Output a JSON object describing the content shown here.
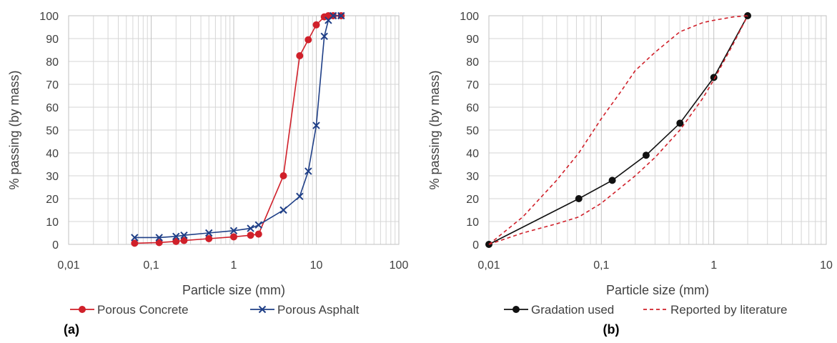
{
  "chart_data": [
    {
      "type": "line",
      "panel_label": "(a)",
      "xlabel": "Particle size (mm)",
      "ylabel": "% passing (by mass)",
      "x_scale": "log",
      "xlim": [
        0.01,
        100
      ],
      "ylim": [
        0,
        100
      ],
      "x_tick_labels": [
        "0,01",
        "0,1",
        "1",
        "10",
        "100"
      ],
      "x_tick_values": [
        0.01,
        0.1,
        1,
        10,
        100
      ],
      "y_ticks": [
        0,
        10,
        20,
        30,
        40,
        50,
        60,
        70,
        80,
        90,
        100
      ],
      "grid": true,
      "legend_position": "bottom",
      "series": [
        {
          "name": "Porous Concrete",
          "color": "#d0202a",
          "marker": "circle",
          "dash": "solid",
          "points": [
            [
              0.063,
              0.5
            ],
            [
              0.125,
              0.8
            ],
            [
              0.2,
              1.3
            ],
            [
              0.25,
              1.7
            ],
            [
              0.5,
              2.5
            ],
            [
              1.0,
              3.3
            ],
            [
              1.6,
              4.0
            ],
            [
              2.0,
              4.5
            ],
            [
              4.0,
              30.0
            ],
            [
              6.3,
              82.5
            ],
            [
              8.0,
              89.5
            ],
            [
              10.0,
              96.0
            ],
            [
              12.5,
              99.5
            ],
            [
              14.0,
              100.0
            ],
            [
              16.0,
              100.0
            ],
            [
              20.0,
              100.0
            ]
          ]
        },
        {
          "name": "Porous Asphalt",
          "color": "#1f3f87",
          "marker": "x",
          "dash": "solid",
          "points": [
            [
              0.063,
              3.0
            ],
            [
              0.125,
              3.0
            ],
            [
              0.2,
              3.5
            ],
            [
              0.25,
              4.0
            ],
            [
              0.5,
              5.0
            ],
            [
              1.0,
              6.0
            ],
            [
              1.6,
              7.0
            ],
            [
              2.0,
              8.5
            ],
            [
              4.0,
              15.0
            ],
            [
              6.3,
              21.0
            ],
            [
              8.0,
              32.0
            ],
            [
              10.0,
              52.0
            ],
            [
              12.5,
              91.0
            ],
            [
              14.0,
              98.0
            ],
            [
              16.0,
              100.0
            ],
            [
              20.0,
              100.0
            ]
          ]
        }
      ]
    },
    {
      "type": "line",
      "panel_label": "(b)",
      "xlabel": "Particle size (mm)",
      "ylabel": "% passing (by mass)",
      "x_scale": "log",
      "xlim": [
        0.01,
        10
      ],
      "ylim": [
        0,
        100
      ],
      "x_tick_labels": [
        "0,01",
        "0,1",
        "1",
        "10"
      ],
      "x_tick_values": [
        0.01,
        0.1,
        1,
        10
      ],
      "y_ticks": [
        0,
        10,
        20,
        30,
        40,
        50,
        60,
        70,
        80,
        90,
        100
      ],
      "grid": true,
      "legend_position": "bottom",
      "series": [
        {
          "name": "Gradation used",
          "color": "#111111",
          "marker": "circle",
          "dash": "solid",
          "points": [
            [
              0.01,
              0
            ],
            [
              0.063,
              20.0
            ],
            [
              0.125,
              28.0
            ],
            [
              0.25,
              39.0
            ],
            [
              0.5,
              53.0
            ],
            [
              1.0,
              73.0
            ],
            [
              2.0,
              100.0
            ]
          ]
        },
        {
          "name": "Reported by literature",
          "color": "#d0202a",
          "marker": "none",
          "dash": "dashed",
          "points": [
            [
              0.01,
              0
            ],
            [
              0.02,
              12
            ],
            [
              0.04,
              28
            ],
            [
              0.063,
              40
            ],
            [
              0.1,
              55
            ],
            [
              0.15,
              67
            ],
            [
              0.2,
              76
            ],
            [
              0.3,
              84
            ],
            [
              0.5,
              93
            ],
            [
              0.8,
              97
            ],
            [
              1.0,
              98
            ],
            [
              1.5,
              99.5
            ],
            [
              2.0,
              100
            ]
          ]
        },
        {
          "name": "",
          "color": "#d0202a",
          "marker": "none",
          "dash": "dashed",
          "points": [
            [
              0.01,
              0
            ],
            [
              0.02,
              5
            ],
            [
              0.04,
              9
            ],
            [
              0.063,
              12
            ],
            [
              0.1,
              18
            ],
            [
              0.15,
              25
            ],
            [
              0.2,
              30
            ],
            [
              0.3,
              38
            ],
            [
              0.5,
              50
            ],
            [
              0.8,
              64
            ],
            [
              1.0,
              72
            ],
            [
              1.5,
              88
            ],
            [
              2.0,
              100
            ]
          ]
        }
      ]
    }
  ]
}
